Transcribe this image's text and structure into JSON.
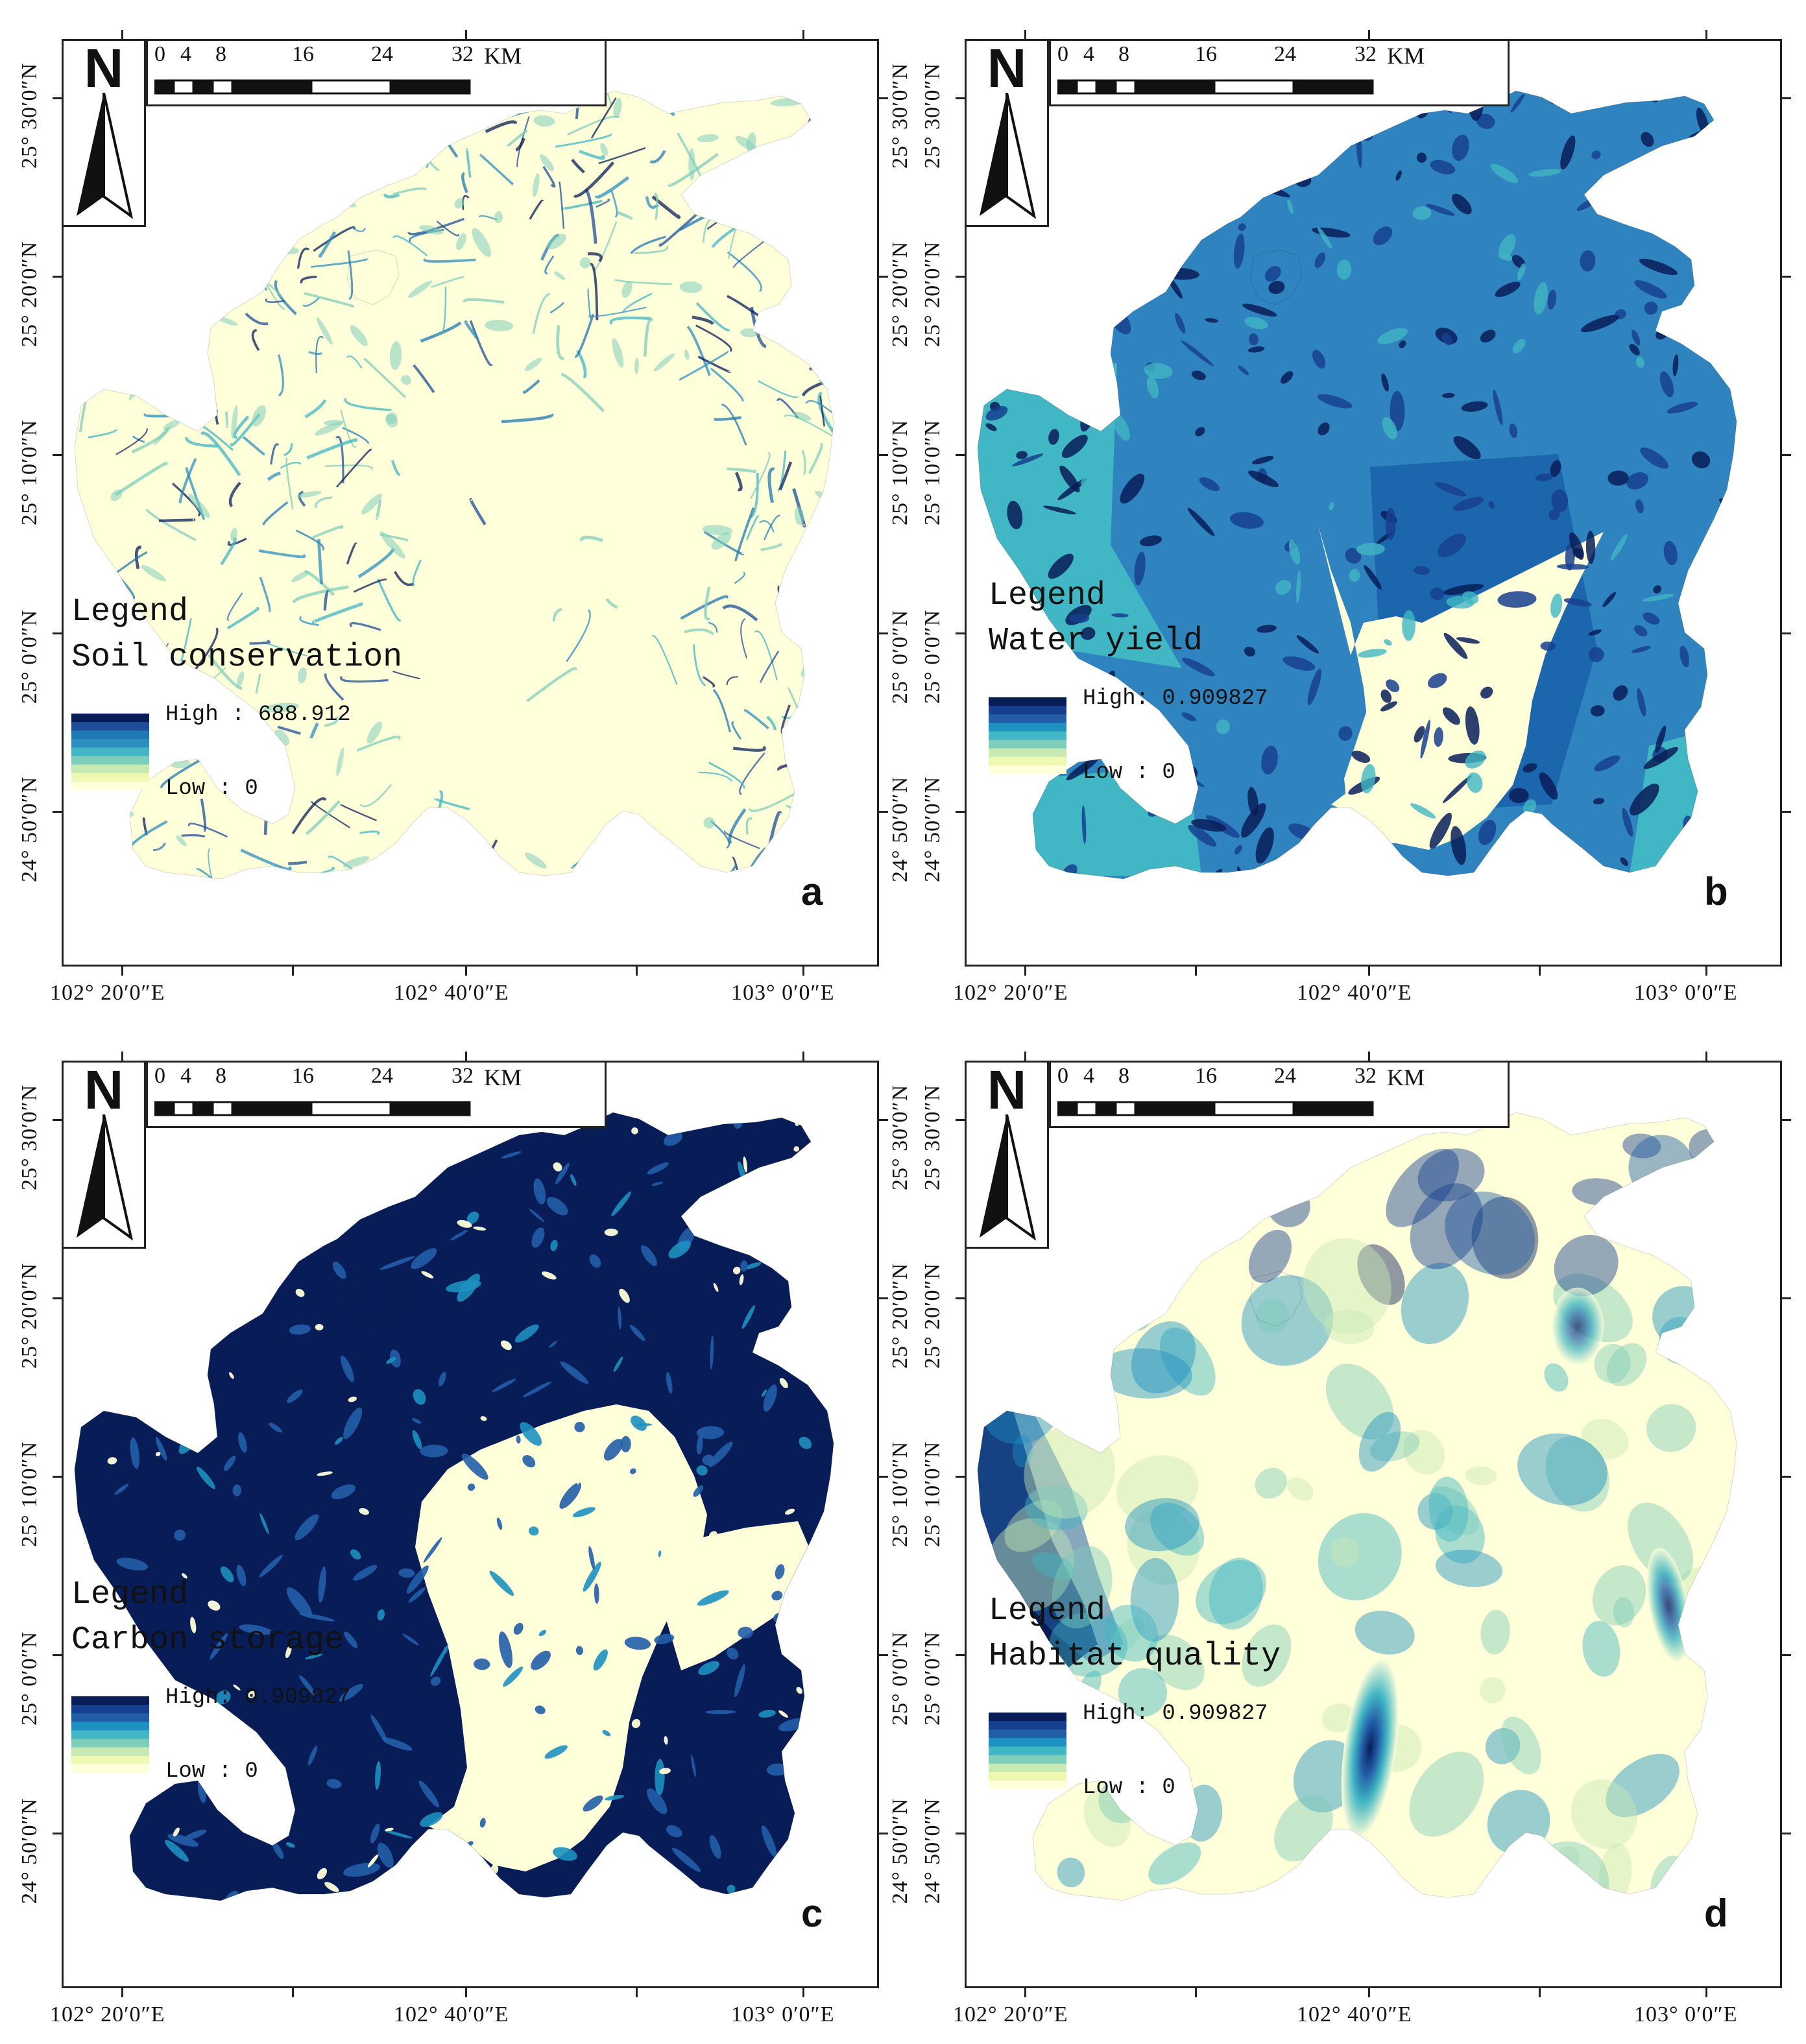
{
  "panels": [
    {
      "letter": "a",
      "legend_heading": "Legend",
      "legend_title": "Soil conservation",
      "high_label": "High : 688.912",
      "low_label": "Low : 0",
      "ramp_colors": [
        "#081d58",
        "#1d4e97",
        "#1f78b4",
        "#2c8fbf",
        "#41b6c4",
        "#7fcdbb",
        "#c7e9b4",
        "#edf8b1",
        "#ffffd9"
      ],
      "style": "soil"
    },
    {
      "letter": "b",
      "legend_heading": "Legend",
      "legend_title": "Water yield",
      "high_label": "High: 0.909827",
      "low_label": "Low : 0",
      "ramp_colors": [
        "#081d58",
        "#173f8f",
        "#225ea8",
        "#1d91c0",
        "#41b6c4",
        "#7fcdbb",
        "#c7e9b4",
        "#edf8b1",
        "#ffffd9"
      ],
      "style": "water"
    },
    {
      "letter": "c",
      "legend_heading": "Legend",
      "legend_title": "Carbon storage",
      "high_label": "High: 0.909827",
      "low_label": "Low : 0",
      "ramp_colors": [
        "#081d58",
        "#173f8f",
        "#225ea8",
        "#1d91c0",
        "#41b6c4",
        "#7fcdbb",
        "#c7e9b4",
        "#edf8b1",
        "#ffffd9"
      ],
      "style": "carbon"
    },
    {
      "letter": "d",
      "legend_heading": "Legend",
      "legend_title": "Habitat quality",
      "high_label": "High: 0.909827",
      "low_label": "Low : 0",
      "ramp_colors": [
        "#081d58",
        "#173f8f",
        "#225ea8",
        "#1d91c0",
        "#41b6c4",
        "#7fcdbb",
        "#c7e9b4",
        "#edf8b1",
        "#ffffd9"
      ],
      "style": "habitat"
    }
  ],
  "north_letter": "N",
  "scale_ticks": [
    "0",
    "4",
    "8",
    "16",
    "24",
    "32"
  ],
  "scale_unit": "KM",
  "lat_labels": [
    "24° 50′0″N",
    "25° 0′0″N",
    "25° 10′0″N",
    "25° 20′0″N",
    "25° 30′0″N"
  ],
  "lon_labels": [
    "102° 20′0″E",
    "102° 40′0″E",
    "103° 0′0″E"
  ]
}
